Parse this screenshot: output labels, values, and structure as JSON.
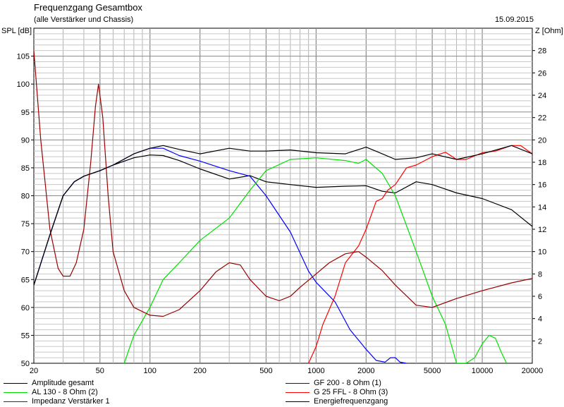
{
  "header": {
    "title": "Frequenzgang Gesamtbox",
    "subtitle": "(alle Verstärker und Chassis)",
    "date": "15.09.2015"
  },
  "chart_data": {
    "type": "line",
    "title": "Frequenzgang Gesamtbox",
    "subtitle": "(alle Verstärker und Chassis)",
    "ylabel_left": "SPL [dB]",
    "ylabel_right": "Z [Ohm]",
    "x_scale": "log",
    "xlim": [
      20,
      20000
    ],
    "ylim_left": [
      50,
      110
    ],
    "ylim_right": [
      0,
      30
    ],
    "grid": true,
    "x_ticks": [
      20,
      50,
      100,
      200,
      500,
      1000,
      2000,
      5000,
      10000,
      20000
    ],
    "x_tick_labels": [
      "20",
      "50",
      "100",
      "200",
      "500",
      "1000",
      "2000",
      "5000",
      "10000",
      "20000"
    ],
    "y_left_ticks": [
      50,
      55,
      60,
      65,
      70,
      75,
      80,
      85,
      90,
      95,
      100,
      105
    ],
    "y_left_tick_labels": [
      "50",
      "55",
      "60",
      "65",
      "70",
      "75",
      "80",
      "85",
      "90",
      "95",
      "100",
      "105"
    ],
    "y_right_ticks": [
      2,
      4,
      6,
      8,
      10,
      12,
      14,
      16,
      18,
      20,
      22,
      24,
      26,
      28
    ],
    "y_right_tick_labels": [
      "2",
      "4",
      "6",
      "8",
      "10",
      "12",
      "14",
      "16",
      "18",
      "20",
      "22",
      "24",
      "26",
      "28"
    ],
    "legend_position": "bottom",
    "series": [
      {
        "name": "Amplitude gesamt",
        "color": "#000000",
        "axis": "left",
        "x": [
          20,
          25,
          30,
          35,
          40,
          50,
          60,
          80,
          100,
          120,
          150,
          200,
          300,
          400,
          500,
          700,
          1000,
          1500,
          2000,
          2500,
          3000,
          4000,
          5000,
          7000,
          10000,
          15000,
          20000
        ],
        "y": [
          64,
          73,
          80,
          82.5,
          83.5,
          84.5,
          85.5,
          86.8,
          87.3,
          87.2,
          86.3,
          84.8,
          83,
          83.6,
          82.5,
          82,
          81.5,
          81.7,
          81.8,
          80.8,
          80.5,
          82.5,
          82,
          80.5,
          79.5,
          77.5,
          74.5
        ]
      },
      {
        "name": "GF 200 - 8 Ohm (1)",
        "color": "#0000ff",
        "axis": "left",
        "x": [
          20,
          25,
          30,
          35,
          40,
          50,
          60,
          80,
          100,
          120,
          150,
          200,
          300,
          400,
          500,
          700,
          900,
          1000,
          1300,
          1600,
          2000,
          2300,
          2600,
          2800,
          3000,
          3200,
          3500
        ],
        "y": [
          64,
          73,
          80,
          82.5,
          83.5,
          84.5,
          85.5,
          87.5,
          88.5,
          88.5,
          87.2,
          86.2,
          84.5,
          83.5,
          80,
          73.5,
          66.5,
          64.5,
          61,
          56,
          52.5,
          50.5,
          50.2,
          51,
          51,
          50.2,
          50
        ]
      },
      {
        "name": "AL 130 - 8 Ohm (2)",
        "color": "#00e000",
        "axis": "left",
        "x": [
          70,
          80,
          100,
          120,
          150,
          200,
          300,
          400,
          500,
          700,
          1000,
          1500,
          1800,
          2000,
          2500,
          3000,
          4000,
          5000,
          6000,
          7000,
          8000,
          9000,
          10000,
          11000,
          12000,
          13000,
          14000
        ],
        "y": [
          50,
          55,
          60,
          65,
          68,
          72,
          76,
          81,
          84.5,
          86.5,
          86.8,
          86.3,
          85.8,
          86.5,
          84,
          80,
          70,
          62,
          57,
          50,
          50,
          51,
          53.5,
          55,
          54.5,
          52,
          50
        ]
      },
      {
        "name": "G 25 FFL - 8 Ohm (3)",
        "color": "#ff0000",
        "axis": "left",
        "x": [
          900,
          1000,
          1100,
          1300,
          1500,
          1800,
          2000,
          2300,
          2500,
          2700,
          3000,
          3500,
          4000,
          5000,
          6000,
          7000,
          8000,
          10000,
          12000,
          15000,
          17000,
          20000
        ],
        "y": [
          50,
          53,
          57,
          62,
          68,
          71,
          74,
          79,
          79.5,
          81,
          82,
          85,
          85.5,
          87,
          87.8,
          86.5,
          86.5,
          87.7,
          88,
          89,
          89,
          87.5
        ]
      },
      {
        "name": "Impedanz Verstärker 1",
        "color": "#990000",
        "axis": "right",
        "x": [
          20,
          22,
          25,
          28,
          30,
          33,
          36,
          40,
          44,
          47,
          49,
          52,
          56,
          60,
          70,
          80,
          100,
          120,
          150,
          200,
          250,
          300,
          350,
          400,
          500,
          600,
          700,
          800,
          1000,
          1200,
          1500,
          1800,
          2000,
          2500,
          3000,
          4000,
          5000,
          7000,
          10000,
          15000,
          20000
        ],
        "y": [
          28,
          20,
          12,
          8.5,
          7.8,
          7.8,
          9,
          12,
          18,
          23,
          25,
          22,
          15,
          10,
          6.5,
          5,
          4.3,
          4.2,
          4.8,
          6.5,
          8.2,
          9,
          8.8,
          7.5,
          6,
          5.6,
          6,
          6.8,
          8,
          9,
          9.8,
          10,
          9.5,
          8.3,
          7,
          5.2,
          5,
          5.8,
          6.5,
          7.2,
          7.6
        ]
      },
      {
        "name": "Energiefrequenzgang",
        "color": "#000000",
        "axis": "left",
        "x": [
          20,
          25,
          30,
          35,
          40,
          50,
          60,
          80,
          100,
          120,
          150,
          200,
          300,
          400,
          500,
          700,
          1000,
          1500,
          2000,
          2500,
          3000,
          4000,
          5000,
          7000,
          10000,
          15000,
          20000
        ],
        "y": [
          64,
          73,
          80,
          82.5,
          83.5,
          84.5,
          85.5,
          87.5,
          88.5,
          89,
          88.3,
          87.5,
          88.5,
          88,
          88,
          88.2,
          87.7,
          87.5,
          88.7,
          87.5,
          86.5,
          86.8,
          87.5,
          86.5,
          87.5,
          89,
          87.5
        ]
      }
    ]
  }
}
